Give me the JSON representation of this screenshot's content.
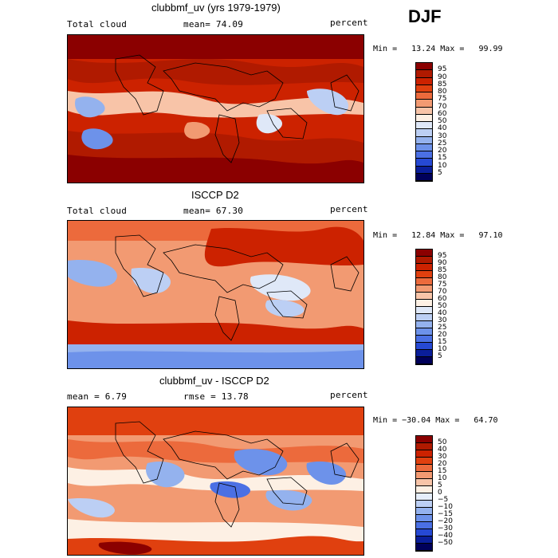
{
  "season": "DJF",
  "panels": [
    {
      "title": "clubbmf_uv (yrs 1979-1979)",
      "left_label": "Total cloud",
      "mean_text": "mean=   74.09",
      "units": "percent",
      "minmax_text": "Min =   13.24 Max =   99.99",
      "colorbar_labels": [
        "95",
        "90",
        "85",
        "80",
        "75",
        "70",
        "60",
        "50",
        "40",
        "30",
        "25",
        "20",
        "15",
        "10",
        "5"
      ],
      "palette": "abs"
    },
    {
      "title": "ISCCP D2",
      "left_label": "Total cloud",
      "mean_text": "mean=   67.30",
      "units": "percent",
      "minmax_text": "Min =   12.84 Max =   97.10",
      "colorbar_labels": [
        "95",
        "90",
        "85",
        "80",
        "75",
        "70",
        "60",
        "50",
        "40",
        "30",
        "25",
        "20",
        "15",
        "10",
        "5"
      ],
      "palette": "abs"
    },
    {
      "title": "clubbmf_uv - ISCCP D2",
      "left_label": "mean =    6.79",
      "mean_text": "rmse =   13.78",
      "units": "percent",
      "minmax_text": "Min = −30.04 Max =   64.70",
      "colorbar_labels": [
        "50",
        "40",
        "30",
        "20",
        "15",
        "10",
        "5",
        "0",
        "−5",
        "−10",
        "−15",
        "−20",
        "−30",
        "−40",
        "−50"
      ],
      "palette": "diff"
    }
  ],
  "colors": {
    "abs_palette": [
      "#8b0000",
      "#b01a00",
      "#cc2200",
      "#e0400f",
      "#ec6a3c",
      "#f29a72",
      "#f8c4a8",
      "#fdf0e4",
      "#dfe8f8",
      "#bccff4",
      "#94b2ee",
      "#6d92ea",
      "#4b70e4",
      "#2649d4",
      "#0a1e9a",
      "#00005a"
    ],
    "diff_palette": [
      "#8b0000",
      "#b01a00",
      "#cc2200",
      "#e0400f",
      "#ec6a3c",
      "#f29a72",
      "#f8c4a8",
      "#fdf0e4",
      "#e6eefb",
      "#bccff4",
      "#94b2ee",
      "#6d92ea",
      "#4b70e4",
      "#2649d4",
      "#0a1e9a",
      "#00005a"
    ]
  }
}
